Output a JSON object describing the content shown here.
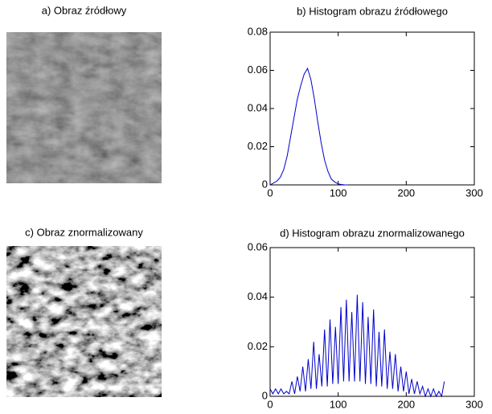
{
  "chart_data": [
    {
      "type": "image",
      "title": "a) Obraz źródłowy",
      "contrast": "low"
    },
    {
      "type": "line",
      "title": "b) Histogram obrazu źródłowego",
      "color": "#0000cc",
      "x": [
        0,
        5,
        10,
        15,
        20,
        25,
        30,
        35,
        40,
        45,
        50,
        55,
        60,
        65,
        70,
        75,
        80,
        85,
        90,
        95,
        100,
        105,
        110,
        115
      ],
      "values": [
        0,
        0.001,
        0.002,
        0.004,
        0.008,
        0.015,
        0.025,
        0.035,
        0.045,
        0.052,
        0.058,
        0.061,
        0.055,
        0.045,
        0.033,
        0.022,
        0.013,
        0.007,
        0.003,
        0.0015,
        0.0005,
        0.0002,
        0,
        0
      ],
      "xlim": [
        0,
        300
      ],
      "xticks": [
        0,
        100,
        200,
        300
      ],
      "ylim": [
        0,
        0.08
      ],
      "yticks": [
        0,
        0.02,
        0.04,
        0.06,
        0.08
      ]
    },
    {
      "type": "image",
      "title": "c) Obraz znormalizowany",
      "contrast": "high"
    },
    {
      "type": "line",
      "title": "d) Histogram obrazu znormalizowanego",
      "color": "#0000cc",
      "x": [
        0,
        4,
        8,
        12,
        16,
        20,
        24,
        28,
        32,
        36,
        40,
        44,
        48,
        52,
        56,
        60,
        64,
        68,
        72,
        76,
        80,
        84,
        88,
        92,
        96,
        100,
        104,
        108,
        112,
        116,
        120,
        124,
        128,
        132,
        136,
        140,
        144,
        148,
        152,
        156,
        160,
        164,
        168,
        172,
        176,
        180,
        184,
        188,
        192,
        196,
        200,
        204,
        208,
        212,
        216,
        220,
        224,
        228,
        232,
        236,
        240,
        244,
        248,
        252,
        256
      ],
      "values": [
        0.003,
        0.001,
        0.003,
        0.001,
        0.003,
        0.001,
        0.002,
        0.001,
        0.006,
        0.001,
        0.008,
        0.002,
        0.012,
        0.002,
        0.015,
        0.003,
        0.022,
        0.003,
        0.017,
        0.004,
        0.027,
        0.004,
        0.031,
        0.005,
        0.028,
        0.005,
        0.036,
        0.006,
        0.039,
        0.006,
        0.034,
        0.006,
        0.041,
        0.006,
        0.038,
        0.005,
        0.032,
        0.005,
        0.035,
        0.004,
        0.026,
        0.004,
        0.027,
        0.003,
        0.018,
        0.003,
        0.017,
        0.002,
        0.012,
        0.002,
        0.01,
        0.001,
        0.007,
        0.001,
        0.006,
        0.001,
        0.004,
        0,
        0.003,
        0,
        0.003,
        0,
        0.002,
        0,
        0.006
      ],
      "xlim": [
        0,
        300
      ],
      "xticks": [
        0,
        100,
        200,
        300
      ],
      "ylim": [
        0,
        0.06
      ],
      "yticks": [
        0,
        0.02,
        0.04,
        0.06
      ]
    }
  ]
}
